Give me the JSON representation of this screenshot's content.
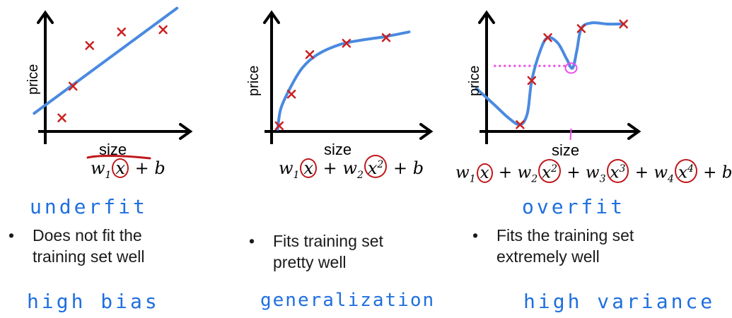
{
  "colors": {
    "curve": "#4a8ae0",
    "marker": "#cc1f1f",
    "annotation_red": "#c0181c",
    "handwriting": "#1f6fe0",
    "dotted_line": "#ef4fe8",
    "axis": "#000000"
  },
  "chart_data": [
    {
      "type": "scatter",
      "id": "underfit",
      "ylabel": "price",
      "xlabel": "size",
      "xlim": [
        0,
        10
      ],
      "ylim": [
        0,
        10
      ],
      "grid": false,
      "points": [
        {
          "x": 1.2,
          "y": 1.2
        },
        {
          "x": 2.0,
          "y": 4.0
        },
        {
          "x": 3.2,
          "y": 7.6
        },
        {
          "x": 5.5,
          "y": 8.8
        },
        {
          "x": 8.5,
          "y": 9.0
        }
      ],
      "fit_line": [
        {
          "x": -0.8,
          "y": 1.6
        },
        {
          "x": 9.5,
          "y": 10.9
        }
      ],
      "formula": "w₁x + b",
      "formula_parts": [
        "w",
        "1",
        "x",
        " + b"
      ],
      "caption": "underfit",
      "bullet_lines": [
        "Does not fit the",
        "training set well"
      ],
      "footer": "high bias"
    },
    {
      "type": "scatter",
      "id": "generalization",
      "ylabel": "price",
      "xlabel": "size",
      "xlim": [
        0,
        10
      ],
      "ylim": [
        0,
        10
      ],
      "grid": false,
      "points": [
        {
          "x": 0.5,
          "y": 0.5
        },
        {
          "x": 1.3,
          "y": 3.3
        },
        {
          "x": 2.5,
          "y": 6.8
        },
        {
          "x": 4.9,
          "y": 7.8
        },
        {
          "x": 7.5,
          "y": 8.3
        }
      ],
      "fit_curve": [
        {
          "x": 0.4,
          "y": 0.2
        },
        {
          "x": 0.6,
          "y": 2.0
        },
        {
          "x": 1.2,
          "y": 3.8
        },
        {
          "x": 2.0,
          "y": 5.6
        },
        {
          "x": 3.0,
          "y": 6.8
        },
        {
          "x": 4.5,
          "y": 7.7
        },
        {
          "x": 6.0,
          "y": 8.1
        },
        {
          "x": 7.5,
          "y": 8.4
        },
        {
          "x": 9.0,
          "y": 8.8
        }
      ],
      "formula": "w₁x + w₂x² + b",
      "formula_parts": [
        "w",
        "1",
        "x",
        " + w",
        "2",
        "x",
        "2",
        " + b"
      ],
      "caption": "",
      "bullet_lines": [
        "Fits training set",
        "pretty well"
      ],
      "footer": "generalization"
    },
    {
      "type": "scatter",
      "id": "overfit",
      "ylabel": "price",
      "xlabel": "size",
      "xlim": [
        0,
        10
      ],
      "ylim": [
        0,
        10
      ],
      "grid": false,
      "points": [
        {
          "x": 2.3,
          "y": 0.6
        },
        {
          "x": 3.1,
          "y": 4.5
        },
        {
          "x": 4.2,
          "y": 8.3
        },
        {
          "x": 6.5,
          "y": 9.1
        },
        {
          "x": 9.4,
          "y": 9.5
        }
      ],
      "fit_curve": [
        {
          "x": -0.7,
          "y": 3.8
        },
        {
          "x": 0.5,
          "y": 2.4
        },
        {
          "x": 1.5,
          "y": 1.2
        },
        {
          "x": 2.3,
          "y": 0.6
        },
        {
          "x": 2.8,
          "y": 1.6
        },
        {
          "x": 3.1,
          "y": 4.5
        },
        {
          "x": 3.7,
          "y": 7.2
        },
        {
          "x": 4.2,
          "y": 8.3
        },
        {
          "x": 4.9,
          "y": 7.8
        },
        {
          "x": 5.5,
          "y": 6.4
        },
        {
          "x": 5.9,
          "y": 5.6
        },
        {
          "x": 6.2,
          "y": 7.2
        },
        {
          "x": 6.5,
          "y": 9.1
        },
        {
          "x": 7.2,
          "y": 9.6
        },
        {
          "x": 8.3,
          "y": 9.5
        },
        {
          "x": 9.4,
          "y": 9.5
        }
      ],
      "dotted_level": {
        "y": 5.8,
        "x_from": 0.5,
        "x_to": 5.7
      },
      "circle_point": {
        "x": 5.9,
        "y": 5.6
      },
      "tick_mark_x": 5.9,
      "formula": "w₁x + w₂x² + w₃x³ + w₄x⁴ + b",
      "formula_parts": [
        "w",
        "1",
        "x",
        " + w",
        "2",
        "x",
        "2",
        " + w",
        "3",
        "x",
        "3",
        " + w",
        "4",
        "x",
        "4",
        " + b"
      ],
      "caption": "overfit",
      "bullet_lines": [
        "Fits the training set",
        "extremely well"
      ],
      "footer": "high variance"
    }
  ]
}
